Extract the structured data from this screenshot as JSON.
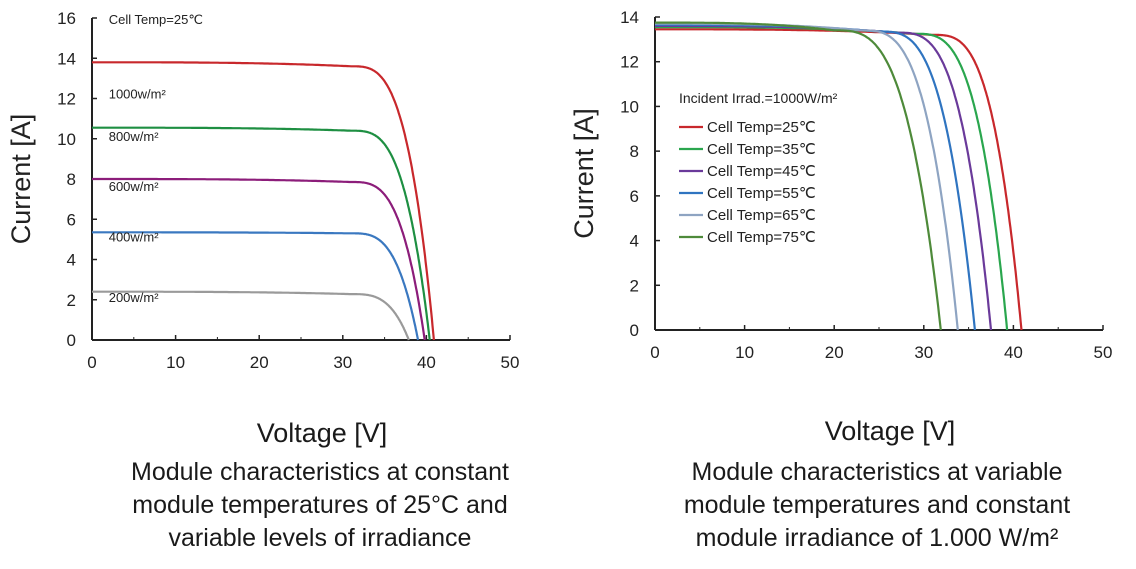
{
  "chart_data": [
    {
      "type": "line",
      "xlabel": "Voltage [V]",
      "ylabel": "Current [A]",
      "caption": [
        "Module characteristics at constant",
        "module temperatures of 25°C and",
        "variable levels of irradiance"
      ],
      "xlim": [
        0,
        50
      ],
      "ylim": [
        0,
        16
      ],
      "xticks": [
        0,
        10,
        20,
        30,
        40,
        50
      ],
      "yticks": [
        0,
        2,
        4,
        6,
        8,
        10,
        12,
        14,
        16
      ],
      "grid": false,
      "annotations": [
        {
          "text": "Cell Temp=25℃",
          "x": 2,
          "y": 15.7
        },
        {
          "text": "1000w/m²",
          "x": 2,
          "y": 12.0
        },
        {
          "text": "800w/m²",
          "x": 2,
          "y": 9.9
        },
        {
          "text": "600w/m²",
          "x": 2,
          "y": 7.4
        },
        {
          "text": "400w/m²",
          "x": 2,
          "y": 4.9
        },
        {
          "text": "200w/m²",
          "x": 2,
          "y": 1.9
        }
      ],
      "series": [
        {
          "color": "#c8282c",
          "isc": 13.8,
          "vmp": 31,
          "imp": 13.6,
          "voc": 40.9
        },
        {
          "color": "#1e8f42",
          "isc": 10.55,
          "vmp": 31,
          "imp": 10.4,
          "voc": 40.4
        },
        {
          "color": "#8c1d7a",
          "isc": 8.0,
          "vmp": 31,
          "imp": 7.85,
          "voc": 39.8
        },
        {
          "color": "#3a78c0",
          "isc": 5.35,
          "vmp": 31,
          "imp": 5.3,
          "voc": 39.0
        },
        {
          "color": "#9a9a9a",
          "isc": 2.4,
          "vmp": 31,
          "imp": 2.28,
          "voc": 37.9
        }
      ]
    },
    {
      "type": "line",
      "xlabel": "Voltage [V]",
      "ylabel": "Current [A]",
      "caption": [
        "Module characteristics at variable",
        "module temperatures and constant",
        "module irradiance of 1.000 W/m²"
      ],
      "xlim": [
        0,
        50
      ],
      "ylim": [
        0,
        14
      ],
      "xticks": [
        0,
        10,
        20,
        30,
        40,
        50
      ],
      "yticks": [
        0,
        2,
        4,
        6,
        8,
        10,
        12,
        14
      ],
      "grid": false,
      "legend_title": "Incident Irrad.=1000W/m²",
      "legend_position": "middle-left",
      "series": [
        {
          "name": "Cell Temp=25℃",
          "color": "#c8282c",
          "isc": 13.45,
          "vmp": 31,
          "imp": 13.2,
          "voc": 40.9
        },
        {
          "name": "Cell Temp=35℃",
          "color": "#2aa64e",
          "isc": 13.55,
          "vmp": 29,
          "imp": 13.25,
          "voc": 39.3
        },
        {
          "name": "Cell Temp=45℃",
          "color": "#6a3a9a",
          "isc": 13.6,
          "vmp": 27,
          "imp": 13.3,
          "voc": 37.5
        },
        {
          "name": "Cell Temp=55℃",
          "color": "#2f74c0",
          "isc": 13.65,
          "vmp": 25,
          "imp": 13.35,
          "voc": 35.7
        },
        {
          "name": "Cell Temp=65℃",
          "color": "#8ea4c2",
          "isc": 13.7,
          "vmp": 23,
          "imp": 13.4,
          "voc": 33.8
        },
        {
          "name": "Cell Temp=75℃",
          "color": "#4e8a3a",
          "isc": 13.75,
          "vmp": 20,
          "imp": 13.4,
          "voc": 31.9
        }
      ]
    }
  ]
}
